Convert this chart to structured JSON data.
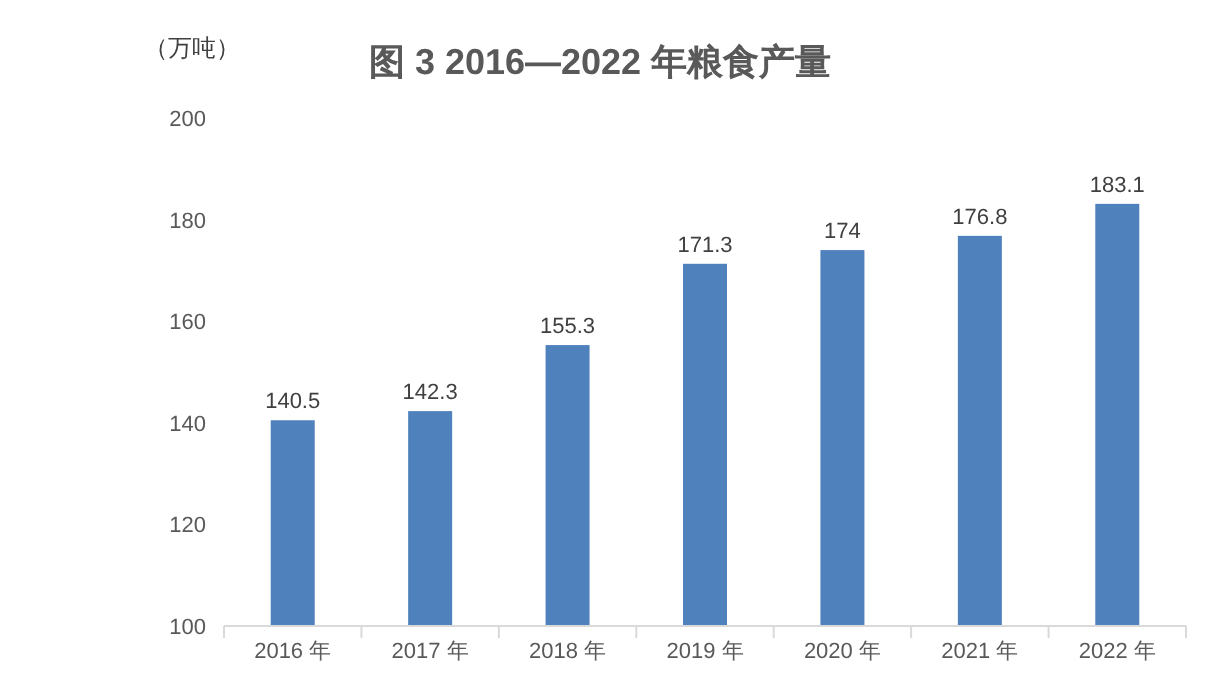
{
  "chart_data": {
    "type": "bar",
    "title": "图 3  2016—2022 年粮食产量",
    "ylabel": "（万吨）",
    "categories": [
      "2016 年",
      "2017 年",
      "2018 年",
      "2019 年",
      "2020 年",
      "2021 年",
      "2022 年"
    ],
    "values": [
      140.5,
      142.3,
      155.3,
      171.3,
      174,
      176.8,
      183.1
    ],
    "color": "#4f81bd",
    "ylim": [
      100,
      200
    ],
    "yticks": [
      100,
      120,
      140,
      160,
      180,
      200
    ],
    "data_labels": true
  }
}
